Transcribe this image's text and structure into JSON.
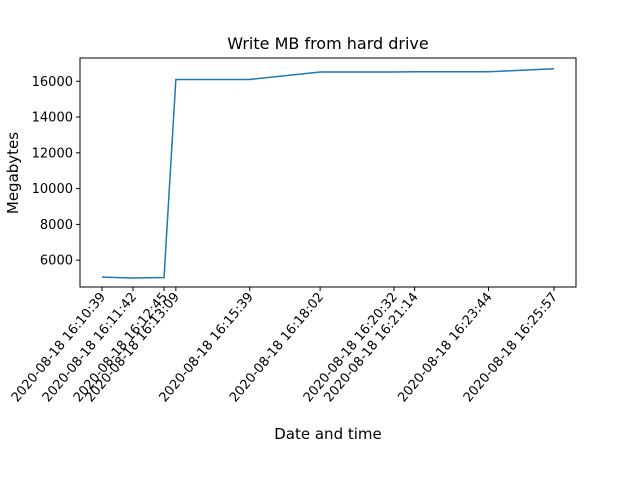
{
  "chart_data": {
    "type": "line",
    "title": "Write MB from hard drive",
    "xlabel": "Date and time",
    "ylabel": "Megabytes",
    "x_tick_labels": [
      "2020-08-18 16:10:39",
      "2020-08-18 16:11:42",
      "2020-08-18 16:12:45",
      "2020-08-18 16:13:09",
      "2020-08-18 16:15:39",
      "2020-08-18 16:18:02",
      "2020-08-18 16:20:32",
      "2020-08-18 16:21:14",
      "2020-08-18 16:23:44",
      "2020-08-18 16:25:57"
    ],
    "x": [
      "2020-08-18 16:10:39",
      "2020-08-18 16:11:42",
      "2020-08-18 16:12:45",
      "2020-08-18 16:13:09",
      "2020-08-18 16:15:39",
      "2020-08-18 16:18:02",
      "2020-08-18 16:20:32",
      "2020-08-18 16:21:14",
      "2020-08-18 16:23:44",
      "2020-08-18 16:25:57"
    ],
    "y": [
      5050,
      5000,
      5030,
      16100,
      16100,
      16520,
      16520,
      16530,
      16530,
      16700
    ],
    "yticks": [
      6000,
      8000,
      10000,
      12000,
      14000,
      16000
    ],
    "ylim": [
      4500,
      17300
    ],
    "grid": false,
    "line_color": "#1f77b4"
  }
}
